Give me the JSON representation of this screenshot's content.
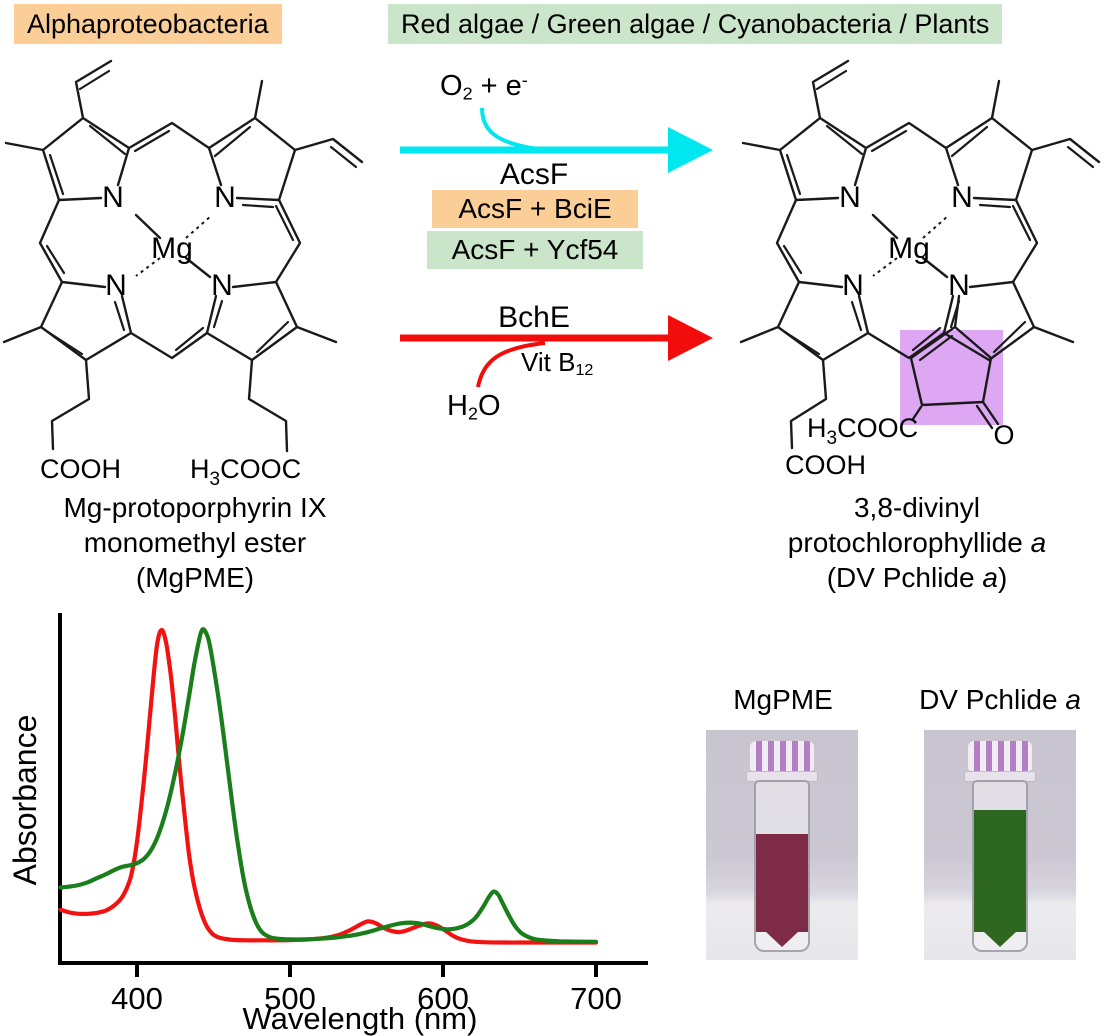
{
  "badges": {
    "left": "Alphaproteobacteria",
    "right": "Red algae / Green algae / Cyanobacteria / Plants"
  },
  "colors": {
    "orange_bg": "#fbce97",
    "green_bg": "#cbe5cb",
    "cyan_arrow": "#00e7ef",
    "red_arrow": "#f20d0d",
    "purple_highlight": "#dda7f3",
    "spectrum_red": "#f31212",
    "spectrum_green": "#1a7e1a"
  },
  "reaction_top": {
    "cofactor_main": "O",
    "cofactor_sub": "2",
    "cofactor_rest": " + e",
    "cofactor_sup": "-",
    "enzyme": "AcsF",
    "combo1": "AcsF + BciE",
    "combo2": "AcsF + Ycf54"
  },
  "reaction_bottom": {
    "enzyme": "BchE",
    "cofactor_main": "Vit B",
    "cofactor_sub": "12",
    "substrate_main": "H",
    "substrate_sub": "2",
    "substrate_rest": "O"
  },
  "molecule_left": {
    "metal": "Mg",
    "nitrogen": "N",
    "acid": "COOH",
    "ester_h": "H",
    "ester_sub": "3",
    "ester_rest": "COOC",
    "caption1": "Mg-protoporphyrin IX",
    "caption2": "monomethyl ester",
    "caption3": "(MgPME)"
  },
  "molecule_right": {
    "metal": "Mg",
    "nitrogen": "N",
    "acid": "COOH",
    "ester_h": "H",
    "ester_sub": "3",
    "ester_rest": "COOC",
    "ketone": "O",
    "caption1": "3,8-divinyl",
    "caption2_main": "protochlorophyllide ",
    "caption2_italic": "a",
    "caption3_pre": "(DV Pchlide ",
    "caption3_italic": "a",
    "caption3_post": ")"
  },
  "photos": {
    "left_label": "MgPME",
    "right_label_main": "DV Pchlide ",
    "right_label_italic": "a",
    "left_liquid_color": "#7d2b47",
    "right_liquid_color": "#2e671f"
  },
  "chart_data": {
    "type": "line",
    "title": "",
    "xlabel": "Wavelength (nm)",
    "ylabel": "Absorbance",
    "xlim": [
      350,
      700
    ],
    "x_ticks": [
      400,
      500,
      600,
      700
    ],
    "ylim": [
      0,
      1.1
    ],
    "grid": false,
    "legend": "none",
    "series": [
      {
        "name": "MgPME",
        "color": "#f31212",
        "points": [
          [
            350,
            0.115
          ],
          [
            356,
            0.106
          ],
          [
            362,
            0.102
          ],
          [
            368,
            0.102
          ],
          [
            374,
            0.105
          ],
          [
            380,
            0.113
          ],
          [
            386,
            0.132
          ],
          [
            391,
            0.16
          ],
          [
            396,
            0.22
          ],
          [
            400,
            0.33
          ],
          [
            404,
            0.5
          ],
          [
            407,
            0.65
          ],
          [
            410,
            0.81
          ],
          [
            413,
            0.95
          ],
          [
            416,
            1.0
          ],
          [
            419,
            0.96
          ],
          [
            422,
            0.86
          ],
          [
            425,
            0.72
          ],
          [
            428,
            0.56
          ],
          [
            431,
            0.42
          ],
          [
            434,
            0.29
          ],
          [
            437,
            0.2
          ],
          [
            441,
            0.12
          ],
          [
            445,
            0.068
          ],
          [
            449,
            0.04
          ],
          [
            453,
            0.028
          ],
          [
            458,
            0.022
          ],
          [
            464,
            0.019
          ],
          [
            472,
            0.018
          ],
          [
            482,
            0.018
          ],
          [
            492,
            0.018
          ],
          [
            502,
            0.019
          ],
          [
            512,
            0.021
          ],
          [
            522,
            0.025
          ],
          [
            532,
            0.035
          ],
          [
            540,
            0.052
          ],
          [
            546,
            0.068
          ],
          [
            551,
            0.078
          ],
          [
            556,
            0.072
          ],
          [
            561,
            0.058
          ],
          [
            566,
            0.048
          ],
          [
            571,
            0.044
          ],
          [
            576,
            0.049
          ],
          [
            582,
            0.06
          ],
          [
            588,
            0.07
          ],
          [
            592,
            0.071
          ],
          [
            597,
            0.062
          ],
          [
            602,
            0.047
          ],
          [
            607,
            0.031
          ],
          [
            612,
            0.021
          ],
          [
            618,
            0.015
          ],
          [
            626,
            0.012
          ],
          [
            640,
            0.011
          ],
          [
            655,
            0.011
          ],
          [
            670,
            0.011
          ],
          [
            685,
            0.011
          ],
          [
            700,
            0.011
          ]
        ]
      },
      {
        "name": "DV Pchlide a",
        "color": "#1a7e1a",
        "points": [
          [
            350,
            0.185
          ],
          [
            356,
            0.188
          ],
          [
            362,
            0.193
          ],
          [
            368,
            0.202
          ],
          [
            374,
            0.215
          ],
          [
            380,
            0.228
          ],
          [
            385,
            0.24
          ],
          [
            390,
            0.25
          ],
          [
            395,
            0.255
          ],
          [
            400,
            0.262
          ],
          [
            405,
            0.278
          ],
          [
            410,
            0.31
          ],
          [
            415,
            0.365
          ],
          [
            420,
            0.445
          ],
          [
            425,
            0.55
          ],
          [
            430,
            0.675
          ],
          [
            434,
            0.79
          ],
          [
            437,
            0.88
          ],
          [
            440,
            0.955
          ],
          [
            442,
            0.995
          ],
          [
            444,
            1.0
          ],
          [
            447,
            0.965
          ],
          [
            450,
            0.885
          ],
          [
            454,
            0.76
          ],
          [
            458,
            0.615
          ],
          [
            462,
            0.46
          ],
          [
            466,
            0.32
          ],
          [
            470,
            0.205
          ],
          [
            474,
            0.125
          ],
          [
            478,
            0.072
          ],
          [
            482,
            0.042
          ],
          [
            487,
            0.028
          ],
          [
            492,
            0.023
          ],
          [
            500,
            0.021
          ],
          [
            510,
            0.021
          ],
          [
            520,
            0.023
          ],
          [
            530,
            0.027
          ],
          [
            540,
            0.033
          ],
          [
            550,
            0.043
          ],
          [
            558,
            0.054
          ],
          [
            566,
            0.065
          ],
          [
            573,
            0.072
          ],
          [
            579,
            0.074
          ],
          [
            585,
            0.071
          ],
          [
            591,
            0.063
          ],
          [
            597,
            0.056
          ],
          [
            603,
            0.053
          ],
          [
            609,
            0.056
          ],
          [
            615,
            0.066
          ],
          [
            621,
            0.088
          ],
          [
            626,
            0.122
          ],
          [
            630,
            0.155
          ],
          [
            633,
            0.172
          ],
          [
            636,
            0.163
          ],
          [
            639,
            0.135
          ],
          [
            643,
            0.097
          ],
          [
            647,
            0.064
          ],
          [
            651,
            0.042
          ],
          [
            656,
            0.028
          ],
          [
            661,
            0.021
          ],
          [
            668,
            0.017
          ],
          [
            676,
            0.015
          ],
          [
            686,
            0.014
          ],
          [
            700,
            0.013
          ]
        ]
      }
    ]
  }
}
